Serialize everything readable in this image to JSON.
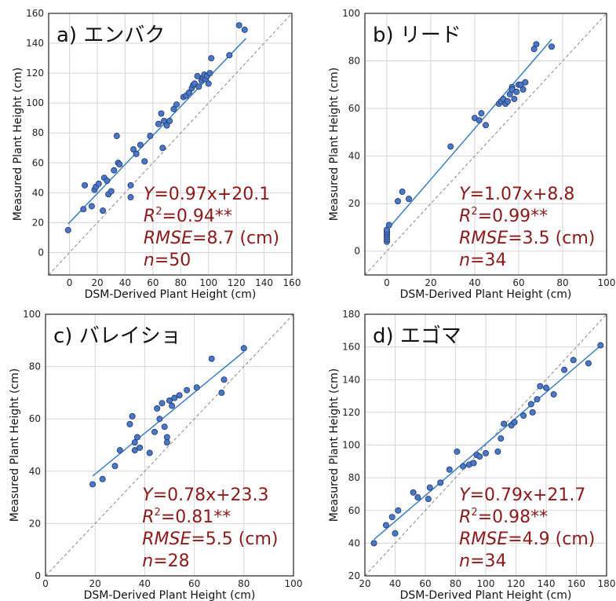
{
  "chart_data": [
    {
      "type": "scatter",
      "title": "a) エンバク",
      "xlabel": "DSM-Derived Plant Height (cm)",
      "ylabel": "Measured Plant Height (cm)",
      "xlim": [
        -15,
        160
      ],
      "ylim": [
        -15,
        160
      ],
      "xticks": [
        0,
        20,
        40,
        60,
        80,
        100,
        120,
        140,
        160
      ],
      "yticks": [
        0,
        20,
        40,
        60,
        80,
        100,
        120,
        140,
        160
      ],
      "grid": true,
      "regression": {
        "slope": 0.97,
        "intercept": 20.1,
        "x_range": [
          -1,
          127
        ]
      },
      "stats": {
        "Y": "0.97x+20.1",
        "R2": "0.94**",
        "RMSE": "8.7 (cm)",
        "n": "50"
      },
      "colors": {
        "point": "#4a78c8",
        "fit": "#3a7fc4",
        "stats": "#8b1a1a"
      },
      "points": [
        [
          -1,
          15
        ],
        [
          10,
          29
        ],
        [
          11,
          45
        ],
        [
          16,
          31
        ],
        [
          18,
          42
        ],
        [
          19,
          44
        ],
        [
          21,
          46
        ],
        [
          24,
          28
        ],
        [
          25,
          50
        ],
        [
          27,
          48
        ],
        [
          28,
          39
        ],
        [
          30,
          41
        ],
        [
          32,
          55
        ],
        [
          34,
          78
        ],
        [
          35,
          60
        ],
        [
          36,
          59
        ],
        [
          44,
          45
        ],
        [
          44,
          37
        ],
        [
          46,
          69
        ],
        [
          48,
          66
        ],
        [
          51,
          72
        ],
        [
          54,
          61
        ],
        [
          58,
          78
        ],
        [
          64,
          86
        ],
        [
          66,
          93
        ],
        [
          67,
          70
        ],
        [
          68,
          88
        ],
        [
          70,
          85
        ],
        [
          72,
          88
        ],
        [
          75,
          96
        ],
        [
          77,
          99
        ],
        [
          82,
          104
        ],
        [
          84,
          105
        ],
        [
          86,
          107
        ],
        [
          88,
          110
        ],
        [
          89,
          112
        ],
        [
          90,
          113
        ],
        [
          92,
          118
        ],
        [
          93,
          111
        ],
        [
          95,
          115
        ],
        [
          96,
          117
        ],
        [
          97,
          119
        ],
        [
          98,
          116
        ],
        [
          99,
          118
        ],
        [
          100,
          113
        ],
        [
          101,
          120
        ],
        [
          102,
          130
        ],
        [
          115,
          132
        ],
        [
          122,
          152
        ],
        [
          126,
          149
        ]
      ]
    },
    {
      "type": "scatter",
      "title": "b) リード",
      "xlabel": "DSM-Derived Plant Height (cm)",
      "ylabel": "Measured Plant Height (cm)",
      "xlim": [
        -10,
        100
      ],
      "ylim": [
        -10,
        100
      ],
      "xticks": [
        0,
        20,
        40,
        60,
        80,
        100
      ],
      "yticks": [
        0,
        20,
        40,
        60,
        80,
        100
      ],
      "grid": true,
      "regression": {
        "slope": 1.07,
        "intercept": 8.8,
        "x_range": [
          0,
          75
        ]
      },
      "stats": {
        "Y": "1.07x+8.8",
        "R2": "0.99**",
        "RMSE": "3.5 (cm)",
        "n": "34"
      },
      "colors": {
        "point": "#4a78c8",
        "fit": "#3a7fc4",
        "stats": "#8b1a1a"
      },
      "points": [
        [
          0,
          4
        ],
        [
          0,
          5
        ],
        [
          0,
          6
        ],
        [
          0,
          7
        ],
        [
          0,
          7
        ],
        [
          0,
          8
        ],
        [
          0,
          8
        ],
        [
          0,
          9
        ],
        [
          1,
          11
        ],
        [
          5,
          21
        ],
        [
          7,
          25
        ],
        [
          10,
          22
        ],
        [
          29,
          44
        ],
        [
          40,
          56
        ],
        [
          42,
          55
        ],
        [
          43,
          58
        ],
        [
          45,
          53
        ],
        [
          51,
          62
        ],
        [
          52,
          63
        ],
        [
          53,
          64
        ],
        [
          54,
          62
        ],
        [
          55,
          63
        ],
        [
          56,
          66
        ],
        [
          57,
          69
        ],
        [
          57,
          68
        ],
        [
          58,
          64
        ],
        [
          59,
          67
        ],
        [
          60,
          70
        ],
        [
          61,
          70
        ],
        [
          62,
          68
        ],
        [
          63,
          71
        ],
        [
          67,
          85
        ],
        [
          68,
          87
        ],
        [
          75,
          86
        ]
      ]
    },
    {
      "type": "scatter",
      "title": "c) バレイショ",
      "xlabel": "DSM-Derived Plant Height (cm)",
      "ylabel": "Measured Plant Height (cm)",
      "xlim": [
        0,
        100
      ],
      "ylim": [
        0,
        100
      ],
      "xticks": [
        0,
        20,
        40,
        60,
        80,
        100
      ],
      "yticks": [
        0,
        20,
        40,
        60,
        80,
        100
      ],
      "grid": true,
      "regression": {
        "slope": 0.78,
        "intercept": 23.3,
        "x_range": [
          19,
          80
        ]
      },
      "stats": {
        "Y": "0.78x+23.3",
        "R2": "0.81**",
        "RMSE": "5.5 (cm)",
        "n": "28"
      },
      "colors": {
        "point": "#4a78c8",
        "fit": "#3a7fc4",
        "stats": "#8b1a1a"
      },
      "points": [
        [
          19,
          35
        ],
        [
          23,
          37
        ],
        [
          28,
          42
        ],
        [
          30,
          48
        ],
        [
          34,
          58
        ],
        [
          35,
          61
        ],
        [
          36,
          48
        ],
        [
          36,
          51
        ],
        [
          37,
          53
        ],
        [
          38,
          49
        ],
        [
          42,
          47
        ],
        [
          44,
          55
        ],
        [
          45,
          64
        ],
        [
          46,
          60
        ],
        [
          47,
          66
        ],
        [
          48,
          57
        ],
        [
          49,
          53
        ],
        [
          49,
          51
        ],
        [
          50,
          67
        ],
        [
          51,
          65
        ],
        [
          52,
          68
        ],
        [
          54,
          69
        ],
        [
          57,
          71
        ],
        [
          61,
          72
        ],
        [
          67,
          83
        ],
        [
          71,
          70
        ],
        [
          72,
          75
        ],
        [
          80,
          87
        ]
      ]
    },
    {
      "type": "scatter",
      "title": "d) エゴマ",
      "xlabel": "DSM-Derived Plant Height (cm)",
      "ylabel": "Measured Plant Height (cm)",
      "xlim": [
        20,
        180
      ],
      "ylim": [
        20,
        180
      ],
      "xticks": [
        20,
        40,
        60,
        80,
        100,
        120,
        140,
        160,
        180
      ],
      "yticks": [
        20,
        40,
        60,
        80,
        100,
        120,
        140,
        160,
        180
      ],
      "grid": true,
      "regression": {
        "slope": 0.79,
        "intercept": 21.7,
        "x_range": [
          26,
          176
        ]
      },
      "stats": {
        "Y": "0.79x+21.7",
        "R2": "0.98**",
        "RMSE": "4.9 (cm)",
        "n": "34"
      },
      "colors": {
        "point": "#4a78c8",
        "fit": "#3a7fc4",
        "stats": "#8b1a1a"
      },
      "points": [
        [
          26,
          40
        ],
        [
          34,
          51
        ],
        [
          38,
          56
        ],
        [
          40,
          46
        ],
        [
          42,
          60
        ],
        [
          52,
          71
        ],
        [
          55,
          68
        ],
        [
          62,
          67
        ],
        [
          63,
          74
        ],
        [
          70,
          77
        ],
        [
          76,
          85
        ],
        [
          81,
          96
        ],
        [
          85,
          87
        ],
        [
          89,
          88
        ],
        [
          92,
          89
        ],
        [
          94,
          94
        ],
        [
          96,
          93
        ],
        [
          100,
          95
        ],
        [
          108,
          96
        ],
        [
          110,
          104
        ],
        [
          112,
          113
        ],
        [
          117,
          112
        ],
        [
          119,
          114
        ],
        [
          125,
          118
        ],
        [
          130,
          125
        ],
        [
          131,
          120
        ],
        [
          134,
          128
        ],
        [
          136,
          136
        ],
        [
          140,
          135
        ],
        [
          145,
          131
        ],
        [
          152,
          146
        ],
        [
          158,
          152
        ],
        [
          168,
          150
        ],
        [
          176,
          161
        ]
      ]
    }
  ]
}
